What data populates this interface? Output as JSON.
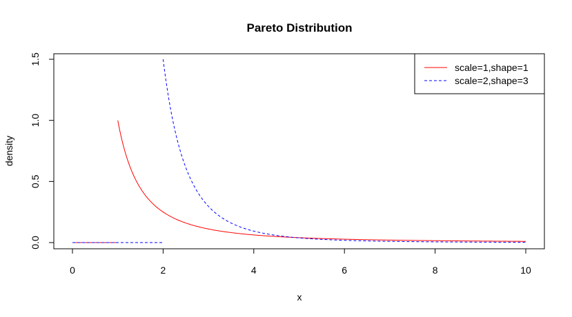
{
  "chart_data": {
    "type": "line",
    "title": "Pareto Distribution",
    "xlabel": "x",
    "ylabel": "density",
    "xlim": [
      0,
      10
    ],
    "ylim": [
      0,
      1.5
    ],
    "xticks": [
      "0",
      "2",
      "4",
      "6",
      "8",
      "10"
    ],
    "yticks": [
      "0.0",
      "0.5",
      "1.0",
      "1.5"
    ],
    "legend_position": "top-right",
    "series": [
      {
        "name": "scale=1,shape=1",
        "color": "#ff0000",
        "line_style": "solid",
        "scale": 1,
        "shape": 1
      },
      {
        "name": "scale=2,shape=3",
        "color": "#0000ff",
        "line_style": "dashed",
        "scale": 2,
        "shape": 3
      }
    ]
  }
}
